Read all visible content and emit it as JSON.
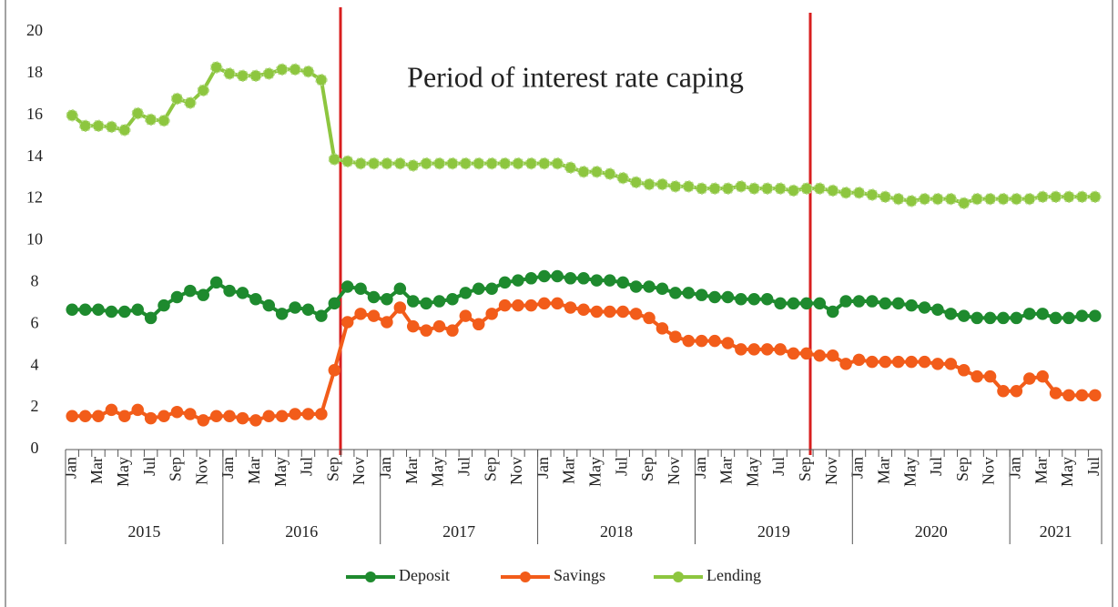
{
  "chart_data": {
    "type": "line",
    "annotation": "Period of interest rate caping",
    "categories": [
      "Jan",
      null,
      "Mar",
      null,
      "May",
      null,
      "Jul",
      null,
      "Sep",
      null,
      "Nov",
      null,
      "Jan",
      null,
      "Mar",
      null,
      "May",
      null,
      "Jul",
      null,
      "Sep",
      null,
      "Nov",
      null,
      "Jan",
      null,
      "Mar",
      null,
      "May",
      null,
      "Jul",
      null,
      "Sep",
      null,
      "Nov",
      null,
      "Jan",
      null,
      "Mar",
      null,
      "May",
      null,
      "Jul",
      null,
      "Sep",
      null,
      "Nov",
      null,
      "Jan",
      null,
      "Mar",
      null,
      "May",
      null,
      "Jul",
      null,
      "Sep",
      null,
      "Nov",
      null,
      "Jan",
      null,
      "Mar",
      null,
      "May",
      null,
      "Jul",
      null,
      "Sep",
      null,
      "Nov",
      null,
      "Jan",
      null,
      "Mar",
      null,
      "May",
      null,
      "Jul"
    ],
    "years": [
      "2015",
      "2016",
      "2017",
      "2018",
      "2019",
      "2020",
      "2021"
    ],
    "series": [
      {
        "name": "Deposit",
        "color": "#1e8a2e",
        "values": [
          6.7,
          6.7,
          6.7,
          6.6,
          6.6,
          6.7,
          6.3,
          6.9,
          7.3,
          7.6,
          7.4,
          8.0,
          7.6,
          7.5,
          7.2,
          6.9,
          6.5,
          6.8,
          6.7,
          6.4,
          7.0,
          7.8,
          7.7,
          7.3,
          7.2,
          7.7,
          7.1,
          7.0,
          7.1,
          7.2,
          7.5,
          7.7,
          7.7,
          8.0,
          8.1,
          8.2,
          8.3,
          8.3,
          8.2,
          8.2,
          8.1,
          8.1,
          8.0,
          7.8,
          7.8,
          7.7,
          7.5,
          7.5,
          7.4,
          7.3,
          7.3,
          7.2,
          7.2,
          7.2,
          7.0,
          7.0,
          7.0,
          7.0,
          6.6,
          7.1,
          7.1,
          7.1,
          7.0,
          7.0,
          6.9,
          6.8,
          6.7,
          6.5,
          6.4,
          6.3,
          6.3,
          6.3,
          6.3,
          6.5,
          6.5,
          6.3,
          6.3,
          6.4,
          6.4
        ]
      },
      {
        "name": "Savings",
        "color": "#f25c1a",
        "values": [
          1.6,
          1.6,
          1.6,
          1.9,
          1.6,
          1.9,
          1.5,
          1.6,
          1.8,
          1.7,
          1.4,
          1.6,
          1.6,
          1.5,
          1.4,
          1.6,
          1.6,
          1.7,
          1.7,
          1.7,
          3.8,
          6.1,
          6.5,
          6.4,
          6.1,
          6.8,
          5.9,
          5.7,
          5.9,
          5.7,
          6.4,
          6.0,
          6.5,
          6.9,
          6.9,
          6.9,
          7.0,
          7.0,
          6.8,
          6.7,
          6.6,
          6.6,
          6.6,
          6.5,
          6.3,
          5.8,
          5.4,
          5.2,
          5.2,
          5.2,
          5.1,
          4.8,
          4.8,
          4.8,
          4.8,
          4.6,
          4.6,
          4.5,
          4.5,
          4.1,
          4.3,
          4.2,
          4.2,
          4.2,
          4.2,
          4.2,
          4.1,
          4.1,
          3.8,
          3.5,
          3.5,
          2.8,
          2.8,
          3.4,
          3.5,
          2.7,
          2.6,
          2.6,
          2.6
        ]
      },
      {
        "name": "Lending",
        "color": "#8dc63f",
        "values": [
          16.0,
          15.5,
          15.5,
          15.45,
          15.3,
          16.1,
          15.8,
          15.75,
          16.8,
          16.6,
          17.2,
          18.3,
          18.0,
          17.9,
          17.9,
          18.0,
          18.2,
          18.2,
          18.1,
          17.7,
          13.9,
          13.8,
          13.7,
          13.7,
          13.7,
          13.7,
          13.6,
          13.7,
          13.7,
          13.7,
          13.7,
          13.7,
          13.7,
          13.7,
          13.7,
          13.7,
          13.7,
          13.7,
          13.5,
          13.3,
          13.3,
          13.2,
          13.0,
          12.8,
          12.7,
          12.7,
          12.6,
          12.6,
          12.5,
          12.5,
          12.5,
          12.6,
          12.5,
          12.5,
          12.5,
          12.4,
          12.5,
          12.5,
          12.4,
          12.3,
          12.3,
          12.2,
          12.1,
          12.0,
          11.9,
          12.0,
          12.0,
          12.0,
          11.8,
          12.0,
          12.0,
          12.0,
          12.0,
          12.0,
          12.1,
          12.1,
          12.1,
          12.1,
          12.1
        ]
      }
    ],
    "ylim": [
      0,
      20
    ],
    "yticks": [
      0,
      2,
      4,
      6,
      8,
      10,
      12,
      14,
      16,
      18,
      20
    ],
    "grid": false
  }
}
